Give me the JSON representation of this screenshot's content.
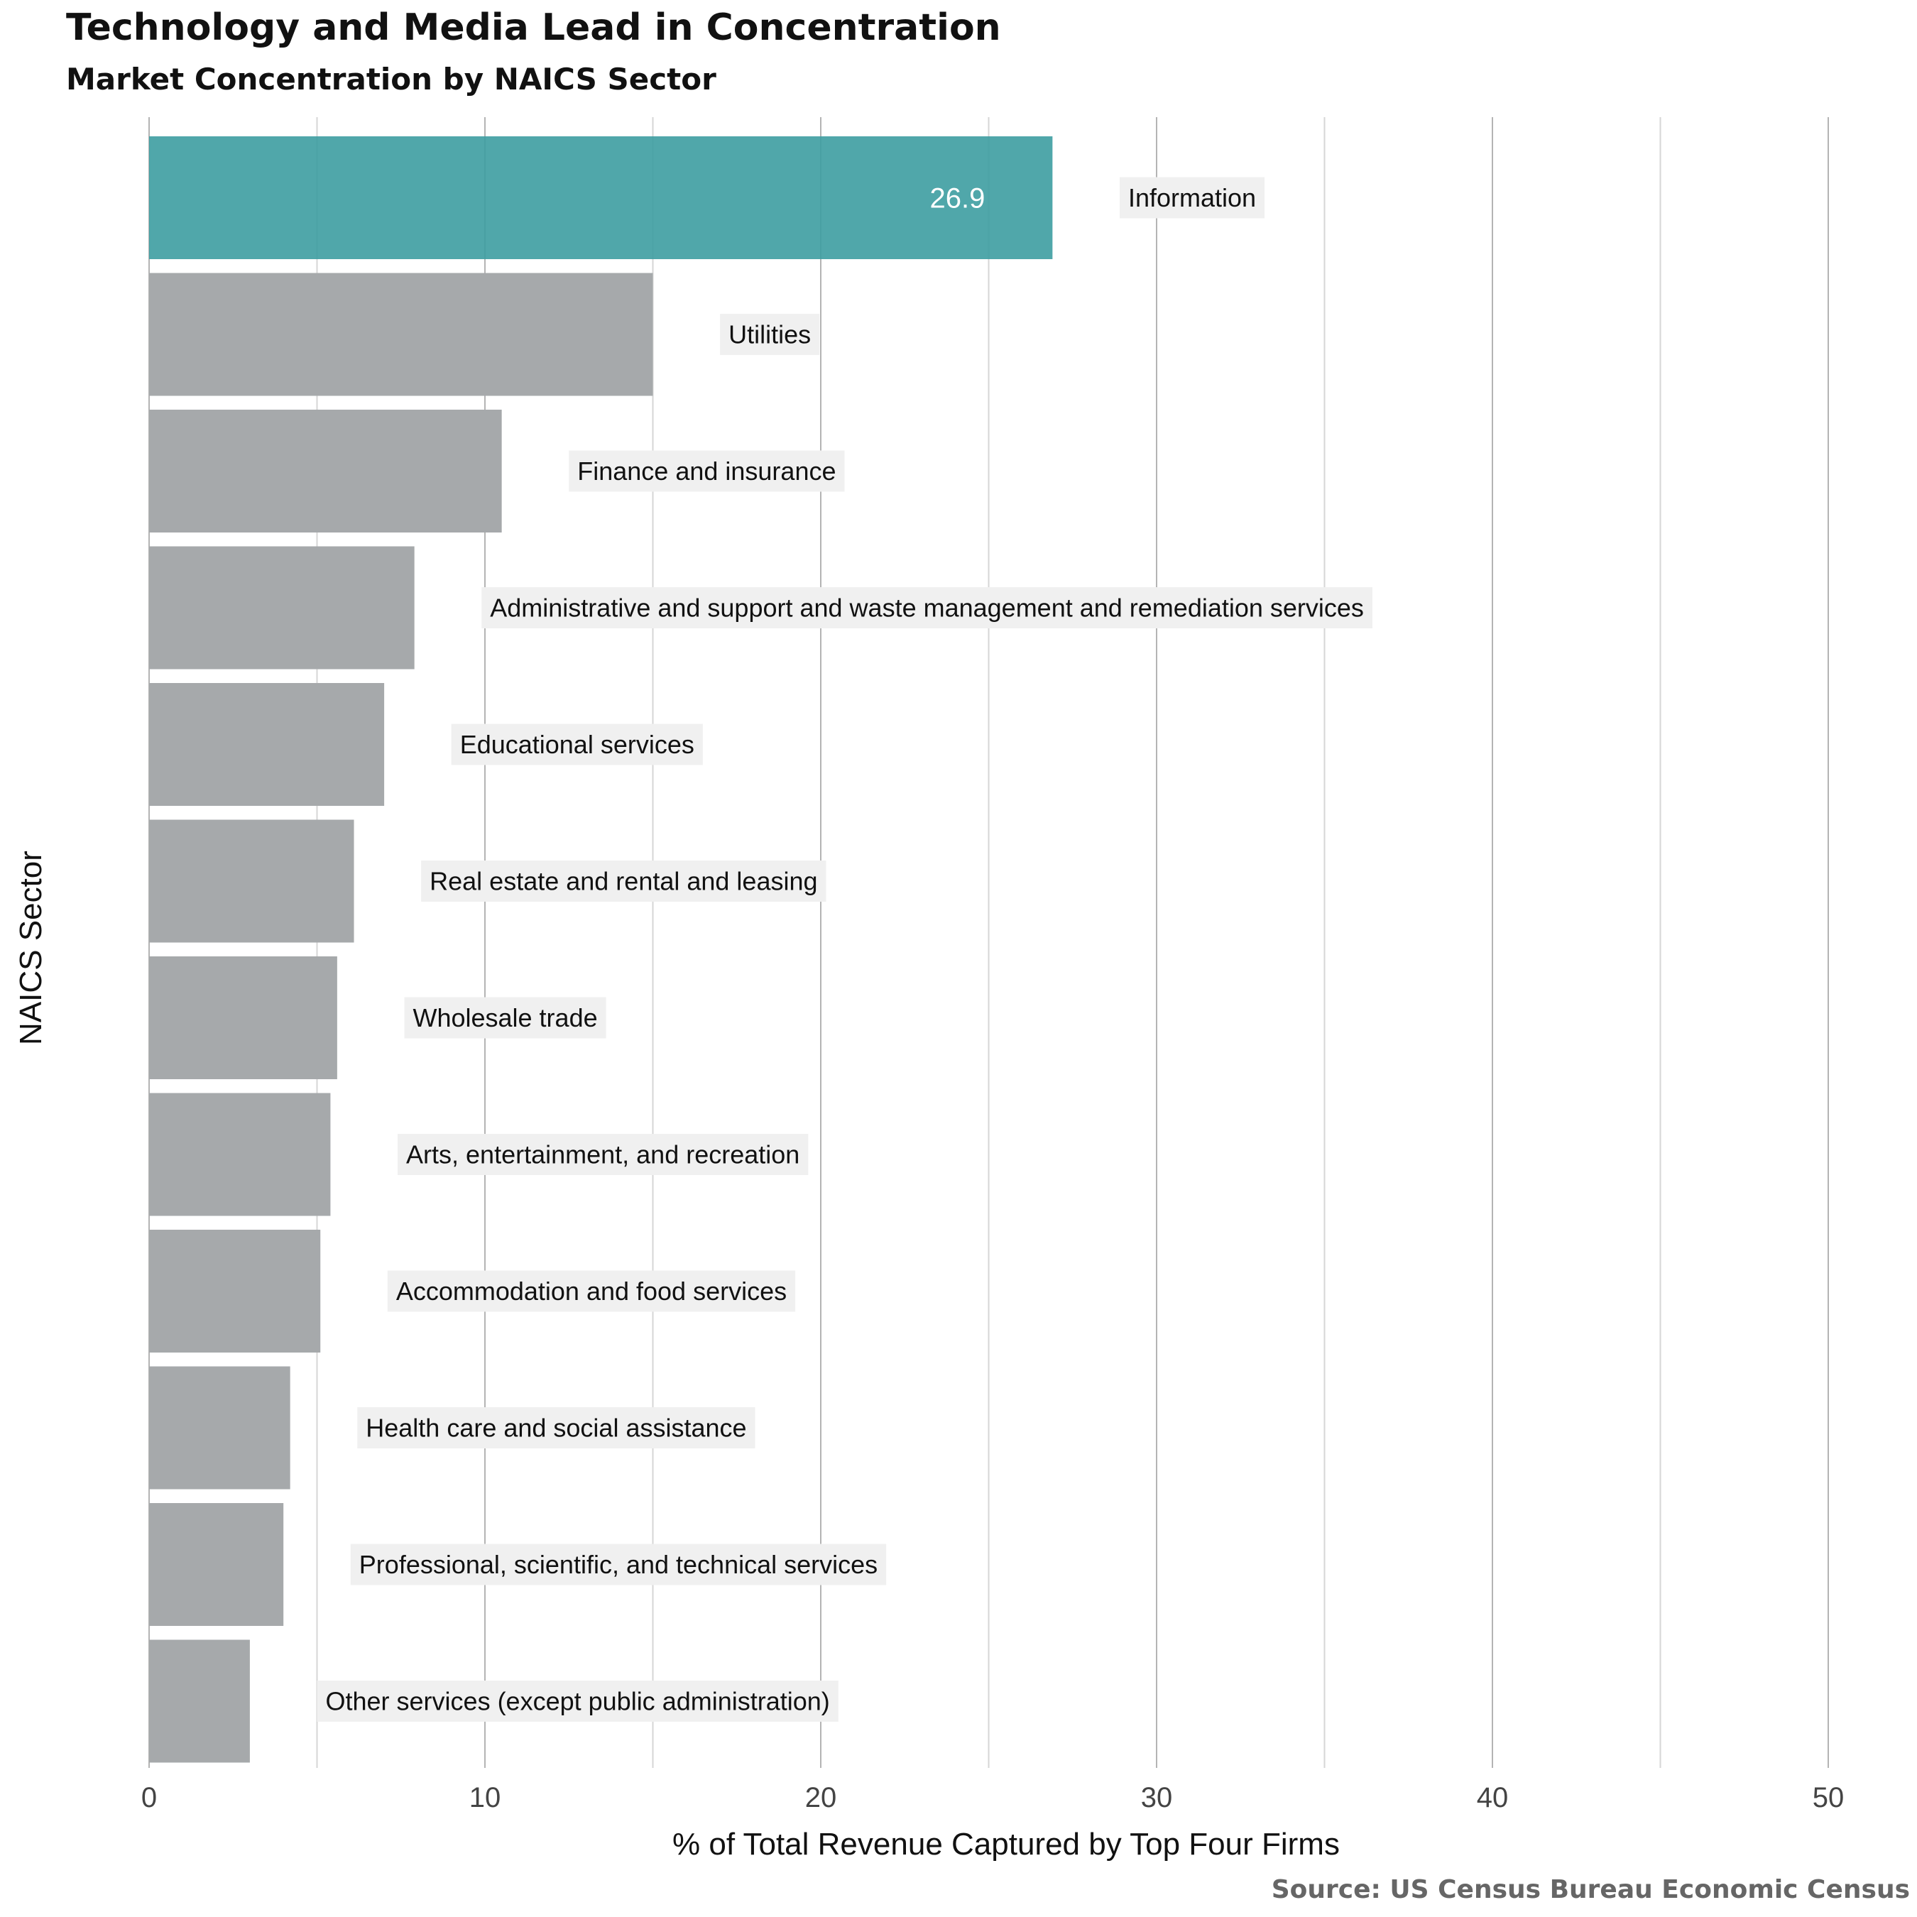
{
  "colors": {
    "highlight": "#3d9da1",
    "bar": "#a6a9ab",
    "grid_major": "#b4b4b4",
    "grid_minor": "#d6d6d6",
    "label_bg": "#f0f0f0",
    "value_text": "#ffffff"
  },
  "chart_data": {
    "type": "bar",
    "orientation": "horizontal",
    "title": "Technology and Media Lead in Concentration",
    "subtitle": "Market Concentration by NAICS Sector",
    "xlabel": "% of Total Revenue Captured by Top Four Firms",
    "ylabel": "NAICS Sector",
    "caption": "Source: US Census Bureau Economic Census",
    "xlim": [
      0,
      52
    ],
    "xticks": [
      0,
      10,
      20,
      30,
      40,
      50
    ],
    "xtick_labels": [
      "0",
      "10",
      "20",
      "30",
      "40",
      "50"
    ],
    "minor_xticks": [
      5,
      15,
      25,
      35,
      45
    ],
    "grid": true,
    "highlight_index": 0,
    "highlight_value_label": "26.9",
    "categories": [
      "Information",
      "Utilities",
      "Finance and insurance",
      "Administrative and support and waste management and remediation services",
      "Educational services",
      "Real estate and rental and leasing",
      "Wholesale trade",
      "Arts, entertainment, and recreation",
      "Accommodation and food services",
      "Health care and social assistance",
      "Professional, scientific, and technical services",
      "Other services (except public administration)"
    ],
    "values": [
      26.9,
      15.0,
      10.5,
      7.9,
      7.0,
      6.1,
      5.6,
      5.4,
      5.1,
      4.2,
      4.0,
      3.0
    ]
  }
}
